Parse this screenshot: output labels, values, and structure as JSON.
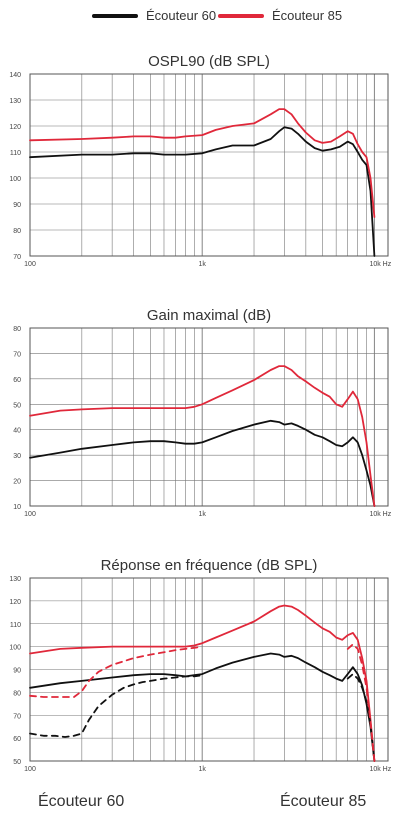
{
  "legend": [
    {
      "label": "Écouteur 60",
      "color": "#111111"
    },
    {
      "label": "Écouteur 85",
      "color": "#e0283a"
    }
  ],
  "bottom_labels": {
    "left": "Écouteur 60",
    "right": "Écouteur 85"
  },
  "chart_data": [
    {
      "type": "line",
      "title": "OSPL90 (dB SPL)",
      "xscale": "log",
      "xlim": [
        100,
        12000
      ],
      "ylim": [
        70,
        140
      ],
      "xticks": [
        "100",
        "1k",
        "10k Hz"
      ],
      "yticks": [
        "70",
        "80",
        "90",
        "100",
        "110",
        "120",
        "130",
        "140"
      ],
      "series": [
        {
          "name": "Écouteur 60",
          "color": "#111111",
          "style": "solid",
          "x": [
            100,
            200,
            300,
            400,
            500,
            600,
            700,
            800,
            1000,
            1200,
            1500,
            2000,
            2500,
            2800,
            3000,
            3300,
            3600,
            4000,
            4500,
            5000,
            5600,
            6300,
            7000,
            7500,
            8000,
            8500,
            9000,
            9500,
            10000
          ],
          "y": [
            108,
            109,
            109,
            109.5,
            109.5,
            109,
            109,
            109,
            109.5,
            111,
            112.5,
            112.5,
            115,
            118,
            119.5,
            119,
            117,
            114,
            111.5,
            110.5,
            111,
            112,
            114,
            113,
            110,
            107,
            105,
            95,
            70
          ]
        },
        {
          "name": "Écouteur 85",
          "color": "#e0283a",
          "style": "solid",
          "x": [
            100,
            200,
            300,
            400,
            500,
            600,
            700,
            800,
            1000,
            1200,
            1500,
            2000,
            2500,
            2800,
            3000,
            3300,
            3600,
            4000,
            4500,
            5000,
            5600,
            6300,
            7000,
            7500,
            8000,
            8500,
            9000,
            9500,
            10000
          ],
          "y": [
            114.5,
            115,
            115.5,
            116,
            116,
            115.5,
            115.5,
            116,
            116.5,
            118.5,
            120,
            121,
            124.5,
            126.5,
            126.5,
            124.5,
            121,
            117.5,
            114.5,
            113.5,
            114,
            116,
            118,
            117,
            113,
            110,
            108,
            100,
            85
          ]
        }
      ]
    },
    {
      "type": "line",
      "title": "Gain maximal (dB)",
      "xscale": "log",
      "xlim": [
        100,
        12000
      ],
      "ylim": [
        10,
        80
      ],
      "xticks": [
        "100",
        "1k",
        "10k Hz"
      ],
      "yticks": [
        "10",
        "20",
        "30",
        "40",
        "50",
        "60",
        "70",
        "80"
      ],
      "series": [
        {
          "name": "Écouteur 60",
          "color": "#111111",
          "style": "solid",
          "x": [
            100,
            150,
            200,
            300,
            400,
            500,
            600,
            700,
            800,
            900,
            1000,
            1200,
            1500,
            2000,
            2500,
            2800,
            3000,
            3300,
            3600,
            4000,
            4500,
            5000,
            5500,
            6000,
            6500,
            7000,
            7500,
            8000,
            8500,
            9000,
            9500,
            10000
          ],
          "y": [
            29,
            31,
            32.5,
            34,
            35,
            35.5,
            35.5,
            35,
            34.5,
            34.5,
            35,
            37,
            39.5,
            42,
            43.5,
            43,
            42,
            42.5,
            41.5,
            40,
            38,
            37,
            35.5,
            34,
            33.5,
            35,
            37,
            35,
            30,
            24,
            18,
            10
          ]
        },
        {
          "name": "Écouteur 85",
          "color": "#e0283a",
          "style": "solid",
          "x": [
            100,
            150,
            200,
            300,
            400,
            500,
            600,
            700,
            800,
            900,
            1000,
            1200,
            1500,
            2000,
            2500,
            2800,
            3000,
            3300,
            3600,
            4000,
            4500,
            5000,
            5500,
            6000,
            6500,
            7000,
            7500,
            8000,
            8500,
            9000,
            9500,
            10000
          ],
          "y": [
            45.5,
            47.5,
            48,
            48.5,
            48.5,
            48.5,
            48.5,
            48.5,
            48.5,
            49,
            50,
            52.5,
            55.5,
            59.5,
            63.5,
            65,
            65,
            63.5,
            61,
            59,
            56.5,
            54.5,
            53,
            50,
            49,
            52,
            55,
            52,
            45,
            35,
            22,
            10
          ]
        }
      ]
    },
    {
      "type": "line",
      "title": "Réponse en fréquence (dB SPL)",
      "xscale": "log",
      "xlim": [
        100,
        12000
      ],
      "ylim": [
        50,
        130
      ],
      "xticks": [
        "100",
        "1k",
        "10k Hz"
      ],
      "yticks": [
        "50",
        "60",
        "70",
        "80",
        "90",
        "100",
        "110",
        "120",
        "130"
      ],
      "series": [
        {
          "name": "Écouteur 60",
          "color": "#111111",
          "style": "solid",
          "x": [
            100,
            150,
            200,
            300,
            400,
            500,
            600,
            700,
            800,
            900,
            1000,
            1200,
            1500,
            2000,
            2500,
            2800,
            3000,
            3300,
            3600,
            4000,
            4500,
            5000,
            5500,
            6000,
            6500,
            7000,
            7500,
            8000,
            8500,
            9000,
            9500,
            10000
          ],
          "y": [
            82,
            84,
            85,
            86.5,
            87.5,
            88,
            88,
            87.5,
            87,
            87.5,
            88,
            90.5,
            93,
            95.5,
            97,
            96.5,
            95.5,
            96,
            95,
            93,
            91,
            89,
            87.5,
            86,
            85,
            88,
            91,
            88,
            83,
            75,
            65,
            50
          ]
        },
        {
          "name": "Écouteur 85",
          "color": "#e0283a",
          "style": "solid",
          "x": [
            100,
            150,
            200,
            300,
            400,
            500,
            600,
            700,
            800,
            900,
            1000,
            1200,
            1500,
            2000,
            2500,
            2800,
            3000,
            3300,
            3600,
            4000,
            4500,
            5000,
            5500,
            6000,
            6500,
            7000,
            7500,
            8000,
            8500,
            9000,
            9500,
            10000
          ],
          "y": [
            97,
            99,
            99.5,
            100,
            100,
            100,
            100,
            100,
            100,
            100.5,
            101.5,
            104,
            107,
            111,
            115.5,
            117.5,
            118,
            117.5,
            116,
            113.5,
            110.5,
            108,
            106.5,
            104,
            103,
            105,
            106,
            103,
            95,
            85,
            68,
            50
          ]
        },
        {
          "name": "Écouteur 60",
          "color": "#111111",
          "style": "dashed",
          "x": [
            100,
            120,
            140,
            160,
            180,
            200,
            220,
            250,
            300,
            350,
            400,
            450,
            500,
            600,
            700,
            800,
            900,
            1000
          ],
          "y": [
            62,
            61,
            61,
            60.5,
            61,
            62,
            68,
            74,
            79,
            82,
            83.5,
            84.5,
            85,
            86,
            86.5,
            87,
            87,
            87.5
          ]
        },
        {
          "name": "Écouteur 85",
          "color": "#e0283a",
          "style": "dashed",
          "x": [
            100,
            120,
            150,
            180,
            200,
            220,
            250,
            300,
            400,
            500,
            600,
            700,
            800,
            900,
            1000
          ],
          "y": [
            78.5,
            78,
            78,
            78,
            80.5,
            85,
            89,
            92,
            95,
            96.5,
            97.5,
            98.5,
            99,
            99.5,
            100
          ]
        },
        {
          "name": "Écouteur 60",
          "color": "#111111",
          "style": "dashed",
          "x": [
            7000,
            7500,
            8000,
            8500,
            9000,
            9500,
            10000
          ],
          "y": [
            86,
            88,
            86,
            82,
            76,
            66,
            50
          ]
        },
        {
          "name": "Écouteur 85",
          "color": "#e0283a",
          "style": "dashed",
          "x": [
            7000,
            7500,
            8000,
            8500,
            9000,
            9500,
            10000
          ],
          "y": [
            99,
            101,
            99,
            92,
            82,
            67,
            50
          ]
        }
      ]
    }
  ]
}
